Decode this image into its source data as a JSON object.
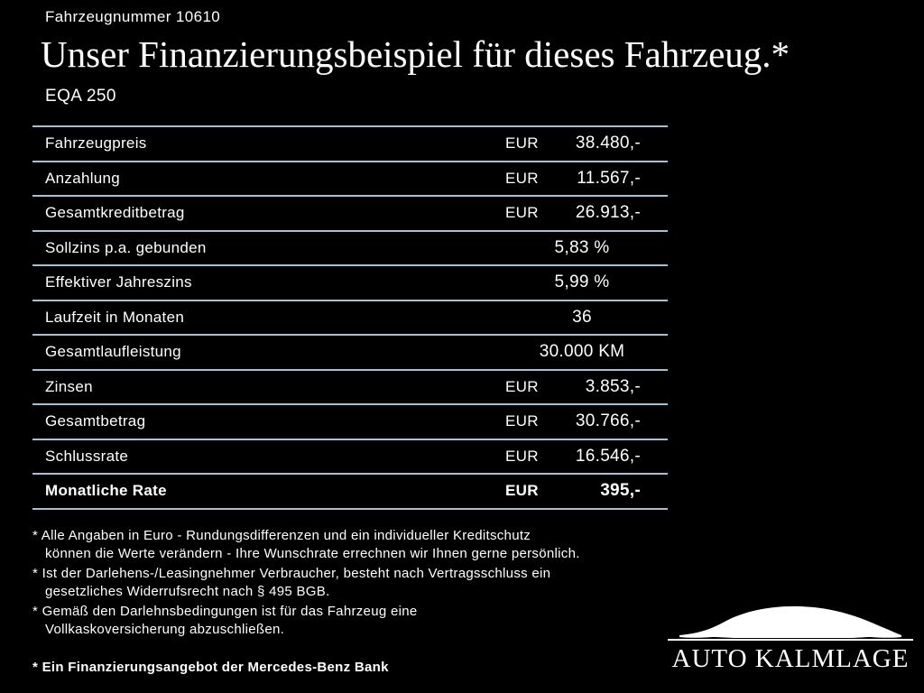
{
  "colors": {
    "background": "#000000",
    "text": "#ffffff",
    "table_line": "#a6c1d3"
  },
  "header": {
    "vehicle_number": "Fahrzeugnummer 10610",
    "title": "Unser Finanzierungsbeispiel für dieses Fahrzeug.*",
    "model": "EQA 250"
  },
  "table": {
    "rows": [
      {
        "label": "Fahrzeugpreis",
        "currency": "EUR",
        "value": "38.480,-",
        "bold": false
      },
      {
        "label": "Anzahlung",
        "currency": "EUR",
        "value": "11.567,-",
        "bold": false
      },
      {
        "label": "Gesamtkreditbetrag",
        "currency": "EUR",
        "value": "26.913,-",
        "bold": false
      },
      {
        "label": "Sollzins p.a. gebunden",
        "currency": "",
        "value": "5,83 %",
        "bold": false
      },
      {
        "label": "Effektiver Jahreszins",
        "currency": "",
        "value": "5,99 %",
        "bold": false
      },
      {
        "label": "Laufzeit in Monaten",
        "currency": "",
        "value": "36",
        "bold": false
      },
      {
        "label": "Gesamtlaufleistung",
        "currency": "",
        "value": "30.000 KM",
        "bold": false
      },
      {
        "label": "Zinsen",
        "currency": "EUR",
        "value": "3.853,-",
        "bold": false
      },
      {
        "label": "Gesamtbetrag",
        "currency": "EUR",
        "value": "30.766,-",
        "bold": false
      },
      {
        "label": "Schlussrate",
        "currency": "EUR",
        "value": "16.546,-",
        "bold": false
      },
      {
        "label": "Monatliche Rate",
        "currency": "EUR",
        "value": "395,-",
        "bold": true
      }
    ]
  },
  "footnotes": [
    "* Alle Angaben in Euro - Rundungsdifferenzen und ein individueller Kreditschutz\nkönnen die Werte verändern - Ihre Wunschrate errechnen wir Ihnen gerne persönlich.",
    "* Ist der Darlehens-/Leasingnehmer Verbraucher, besteht nach Vertragsschluss ein\ngesetzliches Widerrufsrecht nach § 495 BGB.",
    "* Gemäß den Darlehnsbedingungen ist für das Fahrzeug eine\nVollkaskoversicherung abzuschließen."
  ],
  "footer": {
    "offer": "* Ein Finanzierungsangebot der Mercedes-Benz Bank",
    "dealer_name": "AUTO KALMLAGE"
  }
}
